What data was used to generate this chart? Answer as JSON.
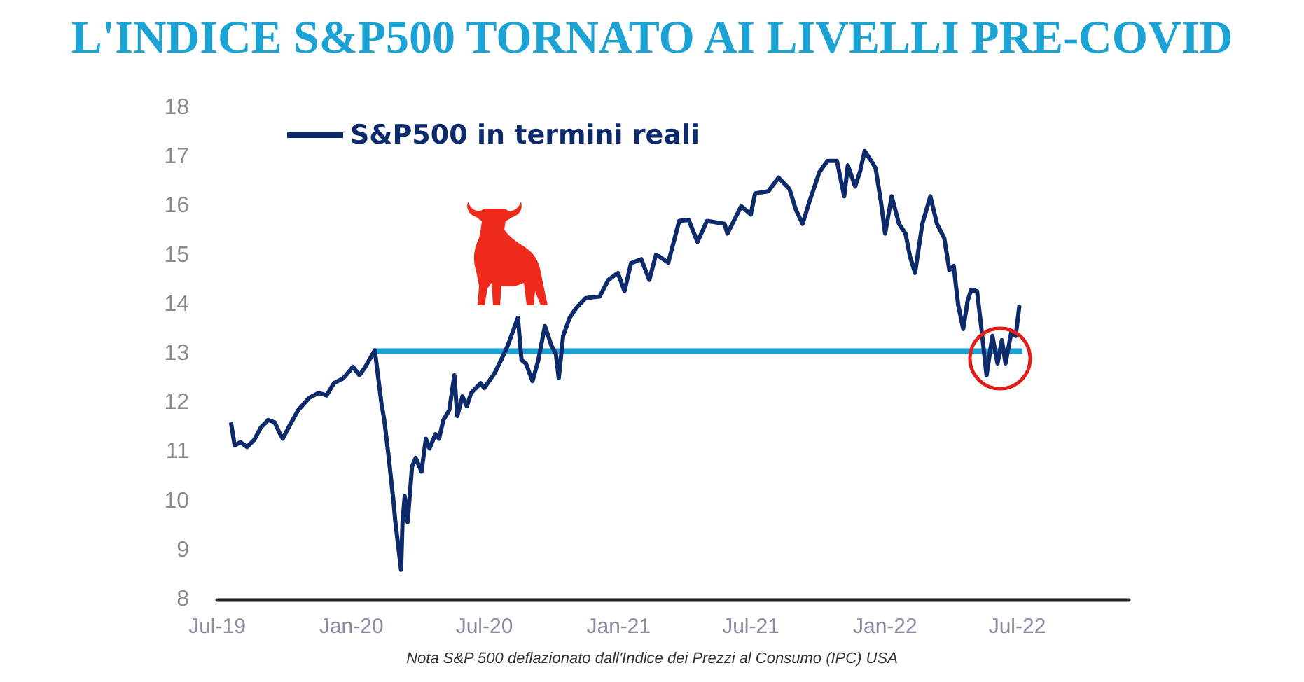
{
  "chart_data": {
    "type": "line",
    "title": "L'INDICE S&P500 TORNATO AI LIVELLI PRE-COVID",
    "annotations": [
      "Nota S&P 500 deflazionato dall'Indice dei Prezzi al Consumo (IPC) USA"
    ],
    "xlim": [
      "2019-07-01",
      "2022-12-01"
    ],
    "xticks": [
      {
        "value": "2019-07-01",
        "label": "Jul-19"
      },
      {
        "value": "2020-01-01",
        "label": "Jan-20"
      },
      {
        "value": "2020-07-01",
        "label": "Jul-20"
      },
      {
        "value": "2021-01-01",
        "label": "Jan-21"
      },
      {
        "value": "2021-07-01",
        "label": "Jul-21"
      },
      {
        "value": "2022-01-01",
        "label": "Jan-22"
      },
      {
        "value": "2022-07-01",
        "label": "Jul-22"
      }
    ],
    "ylim": [
      8,
      18
    ],
    "yticks": [
      8,
      9,
      10,
      11,
      12,
      13,
      14,
      15,
      16,
      17,
      18
    ],
    "grid": false,
    "legend": "top left",
    "series": [
      {
        "name": "S&P500 in termini reali",
        "color": "#0d2a6b",
        "x": [
          "2019-07-20",
          "2019-07-25",
          "2019-08-02",
          "2019-08-11",
          "2019-08-21",
          "2019-08-30",
          "2019-09-09",
          "2019-09-18",
          "2019-09-24",
          "2019-09-29",
          "2019-10-07",
          "2019-10-20",
          "2019-11-04",
          "2019-11-17",
          "2019-11-28",
          "2019-12-08",
          "2019-12-21",
          "2020-01-03",
          "2020-01-12",
          "2020-01-20",
          "2020-02-02",
          "2020-02-11",
          "2020-02-15",
          "2020-02-21",
          "2020-02-28",
          "2020-03-01",
          "2020-03-09",
          "2020-03-11",
          "2020-03-14",
          "2020-03-18",
          "2020-03-24",
          "2020-03-29",
          "2020-04-06",
          "2020-04-12",
          "2020-04-17",
          "2020-04-25",
          "2020-04-30",
          "2020-05-06",
          "2020-05-14",
          "2020-05-21",
          "2020-05-25",
          "2020-06-01",
          "2020-06-07",
          "2020-06-13",
          "2020-06-26",
          "2020-07-01",
          "2020-07-15",
          "2020-07-24",
          "2020-08-02",
          "2020-08-16",
          "2020-08-21",
          "2020-08-27",
          "2020-09-05",
          "2020-09-13",
          "2020-09-22",
          "2020-10-01",
          "2020-10-07",
          "2020-10-11",
          "2020-10-17",
          "2020-10-26",
          "2020-11-04",
          "2020-11-17",
          "2020-12-06",
          "2020-12-18",
          "2020-12-31",
          "2021-01-09",
          "2021-01-18",
          "2021-02-01",
          "2021-02-12",
          "2021-02-21",
          "2021-02-25",
          "2021-03-10",
          "2021-03-25",
          "2021-04-07",
          "2021-04-19",
          "2021-05-02",
          "2021-05-26",
          "2021-05-30",
          "2021-06-18",
          "2021-07-01",
          "2021-07-07",
          "2021-07-25",
          "2021-08-08",
          "2021-08-23",
          "2021-09-01",
          "2021-09-10",
          "2021-09-20",
          "2021-10-03",
          "2021-10-14",
          "2021-10-27",
          "2021-11-06",
          "2021-11-11",
          "2021-11-21",
          "2021-11-28",
          "2021-12-04",
          "2021-12-13",
          "2021-12-19",
          "2021-12-26",
          "2022-01-01",
          "2022-01-10",
          "2022-01-20",
          "2022-01-29",
          "2022-02-04",
          "2022-02-11",
          "2022-02-21",
          "2022-03-04",
          "2022-03-13",
          "2022-03-23",
          "2022-03-30",
          "2022-04-05",
          "2022-04-11",
          "2022-04-18",
          "2022-04-24",
          "2022-04-29",
          "2022-05-07",
          "2022-05-13",
          "2022-05-20",
          "2022-05-28",
          "2022-06-04",
          "2022-06-10",
          "2022-06-15",
          "2022-06-23",
          "2022-06-29",
          "2022-07-04"
        ],
        "values": [
          11.6,
          11.13,
          11.2,
          11.1,
          11.25,
          11.5,
          11.65,
          11.6,
          11.4,
          11.27,
          11.5,
          11.85,
          12.1,
          12.2,
          12.15,
          12.4,
          12.5,
          12.73,
          12.56,
          12.73,
          13.07,
          12.0,
          11.65,
          10.9,
          9.94,
          9.6,
          8.6,
          9.57,
          10.1,
          9.57,
          10.7,
          10.88,
          10.6,
          11.27,
          11.07,
          11.36,
          11.27,
          11.65,
          11.85,
          12.56,
          11.73,
          12.13,
          11.93,
          12.2,
          12.4,
          12.3,
          12.6,
          12.87,
          13.16,
          13.73,
          12.87,
          12.8,
          12.44,
          12.87,
          13.56,
          13.16,
          13.0,
          12.5,
          13.36,
          13.73,
          13.93,
          14.13,
          14.16,
          14.5,
          14.64,
          14.27,
          14.84,
          14.92,
          14.5,
          15.0,
          14.98,
          14.85,
          15.7,
          15.72,
          15.27,
          15.7,
          15.64,
          15.44,
          16.0,
          15.83,
          16.26,
          16.3,
          16.58,
          16.35,
          15.92,
          15.64,
          16.12,
          16.69,
          16.92,
          16.92,
          16.2,
          16.83,
          16.4,
          16.72,
          17.12,
          16.92,
          16.77,
          16.12,
          15.44,
          16.2,
          15.64,
          15.44,
          14.98,
          14.64,
          15.64,
          16.2,
          15.64,
          15.35,
          14.7,
          14.78,
          14.0,
          13.5,
          14.07,
          14.3,
          14.27,
          13.5,
          12.56,
          13.36,
          12.8,
          13.27,
          12.8,
          13.44,
          13.36,
          13.98
        ]
      },
      {
        "color": "#1ba3d6",
        "x": [
          "2020-02-02",
          "2022-07-08"
        ],
        "values": [
          13.05,
          13.05
        ]
      }
    ]
  }
}
